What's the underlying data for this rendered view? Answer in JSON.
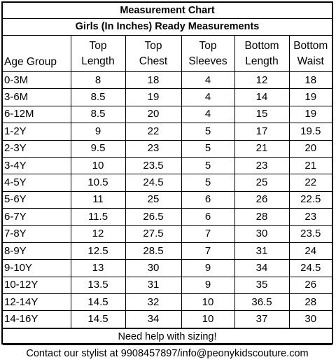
{
  "title": "Measurement Chart",
  "subtitle": "Girls (In Inches) Ready Measurements",
  "headers": [
    [
      "Age Group"
    ],
    [
      "Top",
      "Length"
    ],
    [
      "Top",
      "Chest"
    ],
    [
      "Top",
      "Sleeves"
    ],
    [
      "Bottom",
      "Length"
    ],
    [
      "Bottom",
      "Waist"
    ]
  ],
  "rows": [
    [
      "0-3M",
      "8",
      "18",
      "4",
      "12",
      "18"
    ],
    [
      "3-6M",
      "8.5",
      "19",
      "4",
      "14",
      "19"
    ],
    [
      "6-12M",
      "8.5",
      "20",
      "4",
      "15",
      "19"
    ],
    [
      "1-2Y",
      "9",
      "22",
      "5",
      "17",
      "19.5"
    ],
    [
      "2-3Y",
      "9.5",
      "23",
      "5",
      "21",
      "20"
    ],
    [
      "3-4Y",
      "10",
      "23.5",
      "5",
      "23",
      "21"
    ],
    [
      "4-5Y",
      "10.5",
      "24.5",
      "5",
      "25",
      "22"
    ],
    [
      "5-6Y",
      "11",
      "25",
      "6",
      "26",
      "22.5"
    ],
    [
      "6-7Y",
      "11.5",
      "26.5",
      "6",
      "28",
      "23"
    ],
    [
      "7-8Y",
      "12",
      "27.5",
      "7",
      "30",
      "23.5"
    ],
    [
      "8-9Y",
      "12.5",
      "28.5",
      "7",
      "31",
      "24"
    ],
    [
      "9-10Y",
      "13",
      "30",
      "9",
      "34",
      "24.5"
    ],
    [
      "10-12Y",
      "13.5",
      "31",
      "9",
      "35",
      "26"
    ],
    [
      "12-14Y",
      "14.5",
      "32",
      "10",
      "36.5",
      "28"
    ],
    [
      "14-16Y",
      "14.5",
      "34",
      "10",
      "37",
      "30"
    ]
  ],
  "footer": {
    "help_text": "Need help with sizing!",
    "contact_text": "Contact our stylist at 9908457897/info@peonykidscouture.com"
  }
}
